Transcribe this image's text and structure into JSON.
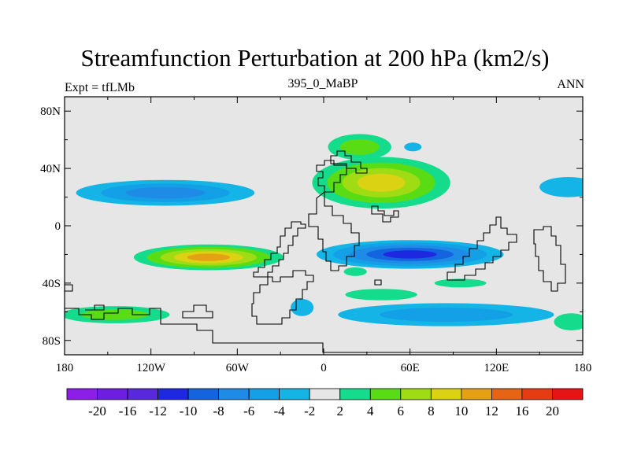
{
  "chart_data": {
    "type": "filled-contour-map",
    "title": "Streamfunction Perturbation at 200 hPa (km2/s)",
    "subtitle": "395_0_MaBP",
    "left_label": "Expt = tfLMb",
    "right_label": "ANN",
    "x_range": [
      -180,
      180
    ],
    "y_range": [
      -90,
      90
    ],
    "x_ticks": [
      {
        "value": -180,
        "label": "180"
      },
      {
        "value": -120,
        "label": "120W"
      },
      {
        "value": -60,
        "label": "60W"
      },
      {
        "value": 0,
        "label": "0"
      },
      {
        "value": 60,
        "label": "60E"
      },
      {
        "value": 120,
        "label": "120E"
      },
      {
        "value": 180,
        "label": "180"
      }
    ],
    "y_ticks": [
      {
        "value": 80,
        "label": "80N"
      },
      {
        "value": 40,
        "label": "40N"
      },
      {
        "value": 0,
        "label": "0"
      },
      {
        "value": -40,
        "label": "40S"
      },
      {
        "value": -80,
        "label": "80S"
      }
    ],
    "colorbar": {
      "labels": [
        "-20",
        "-16",
        "-12",
        "-10",
        "-8",
        "-6",
        "-4",
        "-2",
        "2",
        "4",
        "6",
        "8",
        "10",
        "12",
        "16",
        "20"
      ],
      "colors": [
        "#8c1ee8",
        "#6e1ee0",
        "#5a28dc",
        "#1e28e0",
        "#1464e0",
        "#1e8ce6",
        "#14a0e6",
        "#14b4e6",
        "#e6e6e6",
        "#14dc8c",
        "#5adc14",
        "#a0dc14",
        "#dcd214",
        "#e6a014",
        "#e66414",
        "#e63c14",
        "#e61414"
      ]
    },
    "contours": [
      {
        "name": "north-pacific-low",
        "center": [
          -110,
          23
        ],
        "radius": [
          62,
          9
        ],
        "levels": [
          -2,
          -4,
          -6
        ]
      },
      {
        "name": "east-pacific-high",
        "center": [
          -80,
          -22
        ],
        "radius": [
          52,
          9
        ],
        "levels": [
          2,
          4,
          6,
          8,
          10
        ]
      },
      {
        "name": "south-america-low",
        "center": [
          -15,
          -57
        ],
        "radius": [
          8,
          6
        ],
        "levels": [
          -2
        ]
      },
      {
        "name": "west-antarctic-high",
        "center": [
          -145,
          -62
        ],
        "radius": [
          38,
          6
        ],
        "levels": [
          2,
          4
        ]
      },
      {
        "name": "europe-asia-high",
        "center": [
          40,
          30
        ],
        "radius": [
          48,
          18
        ],
        "levels": [
          2,
          4,
          6,
          8
        ]
      },
      {
        "name": "north-atlantic-high",
        "center": [
          25,
          55
        ],
        "radius": [
          22,
          9
        ],
        "levels": [
          2,
          4
        ]
      },
      {
        "name": "indian-ocean-low",
        "center": [
          60,
          -20
        ],
        "radius": [
          65,
          10
        ],
        "levels": [
          -2,
          -4,
          -6,
          -8,
          -10
        ]
      },
      {
        "name": "south-indian-low",
        "center": [
          85,
          -62
        ],
        "radius": [
          75,
          8
        ],
        "levels": [
          -2,
          -4
        ]
      },
      {
        "name": "north-pacific-west-low",
        "center": [
          170,
          27
        ],
        "radius": [
          20,
          7
        ],
        "levels": [
          -2
        ]
      },
      {
        "name": "southern-atlantic-high",
        "center": [
          40,
          -48
        ],
        "radius": [
          25,
          4
        ],
        "levels": [
          2
        ]
      },
      {
        "name": "south-indian-high",
        "center": [
          95,
          -40
        ],
        "radius": [
          18,
          3
        ],
        "levels": [
          2
        ]
      },
      {
        "name": "far-southeast-high",
        "center": [
          172,
          -67
        ],
        "radius": [
          12,
          6
        ],
        "levels": [
          2
        ]
      },
      {
        "name": "north-atlantic-small-low",
        "center": [
          62,
          55
        ],
        "radius": [
          6,
          3
        ],
        "levels": [
          -2
        ]
      },
      {
        "name": "indian-small-high",
        "center": [
          22,
          -32
        ],
        "radius": [
          8,
          3
        ],
        "levels": [
          2
        ]
      }
    ]
  }
}
